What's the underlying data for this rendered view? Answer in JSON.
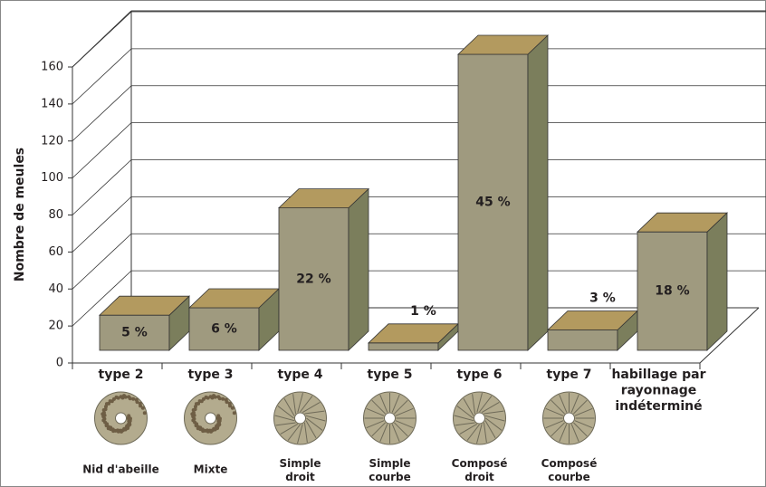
{
  "chart_data": {
    "type": "bar3d",
    "y_label": "Nombre de meules",
    "categories": [
      "type 2",
      "type 3",
      "type 4",
      "type 5",
      "type 6",
      "type 7",
      "habillage par\nrayonnage\nindéterminé"
    ],
    "sublabels": [
      "Nid d'abeille",
      "Mixte",
      "Simple\ndroit",
      "Simple\ncourbe",
      "Composé\ndroit",
      "Composé\ncourbe",
      null
    ],
    "values": [
      19,
      23,
      77,
      4,
      160,
      11,
      64
    ],
    "share_labels": [
      "5 %",
      "6 %",
      "22 %",
      "1 %",
      "45 %",
      "3 %",
      "18 %"
    ],
    "colors": {
      "front": "#9f9a7f",
      "side": "#7b7e5c",
      "top": "#b39a5f"
    },
    "ylim": [
      0,
      160
    ],
    "yticks": [
      0,
      20,
      40,
      60,
      80,
      100,
      120,
      140,
      160
    ],
    "grid": true
  }
}
